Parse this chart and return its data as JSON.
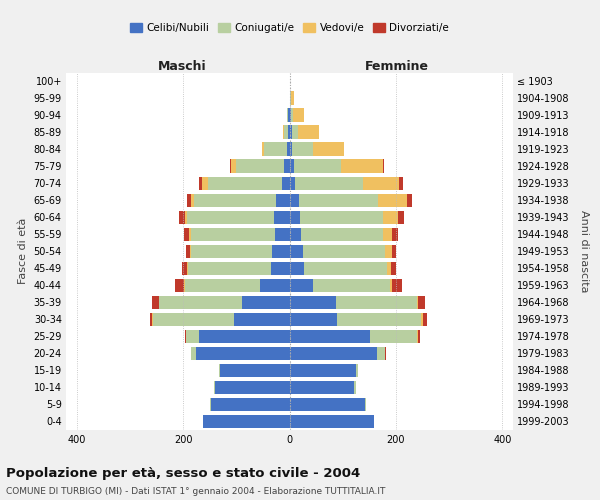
{
  "age_groups": [
    "0-4",
    "5-9",
    "10-14",
    "15-19",
    "20-24",
    "25-29",
    "30-34",
    "35-39",
    "40-44",
    "45-49",
    "50-54",
    "55-59",
    "60-64",
    "65-69",
    "70-74",
    "75-79",
    "80-84",
    "85-89",
    "90-94",
    "95-99",
    "100+"
  ],
  "birth_years": [
    "1999-2003",
    "1994-1998",
    "1989-1993",
    "1984-1988",
    "1979-1983",
    "1974-1978",
    "1969-1973",
    "1964-1968",
    "1959-1963",
    "1954-1958",
    "1949-1953",
    "1944-1948",
    "1939-1943",
    "1934-1938",
    "1929-1933",
    "1924-1928",
    "1919-1923",
    "1914-1918",
    "1909-1913",
    "1904-1908",
    "≤ 1903"
  ],
  "maschi": {
    "celibi": [
      162,
      148,
      140,
      130,
      175,
      170,
      105,
      90,
      55,
      35,
      32,
      28,
      30,
      25,
      15,
      10,
      5,
      3,
      2,
      0,
      0
    ],
    "coniugati": [
      0,
      1,
      2,
      2,
      10,
      25,
      152,
      155,
      142,
      155,
      153,
      158,
      163,
      155,
      138,
      90,
      42,
      8,
      3,
      0,
      0
    ],
    "vedovi": [
      0,
      0,
      0,
      0,
      0,
      0,
      1,
      1,
      1,
      2,
      2,
      2,
      3,
      5,
      12,
      10,
      5,
      2,
      0,
      0,
      0
    ],
    "divorziati": [
      0,
      0,
      0,
      0,
      1,
      2,
      5,
      12,
      18,
      10,
      8,
      10,
      12,
      8,
      5,
      2,
      0,
      0,
      0,
      0,
      0
    ]
  },
  "femmine": {
    "nubili": [
      158,
      142,
      122,
      125,
      165,
      152,
      90,
      88,
      45,
      28,
      25,
      22,
      20,
      18,
      10,
      8,
      5,
      4,
      2,
      1,
      0
    ],
    "coniugate": [
      0,
      1,
      3,
      4,
      15,
      88,
      158,
      152,
      143,
      155,
      155,
      153,
      155,
      148,
      128,
      88,
      40,
      12,
      5,
      2,
      0
    ],
    "vedove": [
      0,
      0,
      0,
      0,
      0,
      1,
      2,
      2,
      5,
      8,
      12,
      18,
      28,
      55,
      68,
      80,
      58,
      40,
      20,
      5,
      0
    ],
    "divorziate": [
      0,
      0,
      0,
      0,
      2,
      5,
      8,
      12,
      18,
      10,
      8,
      10,
      12,
      10,
      8,
      2,
      0,
      0,
      0,
      0,
      0
    ]
  },
  "colors": {
    "celibi": "#4472c4",
    "coniugati": "#b8cfa0",
    "vedovi": "#f0c060",
    "divorziati": "#c0392b"
  },
  "xlim": 420,
  "title": "Popolazione per età, sesso e stato civile - 2004",
  "subtitle": "COMUNE DI TURBIGO (MI) - Dati ISTAT 1° gennaio 2004 - Elaborazione TUTTITALIA.IT",
  "xlabel_left": "Maschi",
  "xlabel_right": "Femmine",
  "ylabel_left": "Fasce di età",
  "ylabel_right": "Anni di nascita",
  "background_color": "#f0f0f0",
  "plot_bg": "#ffffff",
  "xticks": [
    -400,
    -200,
    0,
    200,
    400
  ]
}
